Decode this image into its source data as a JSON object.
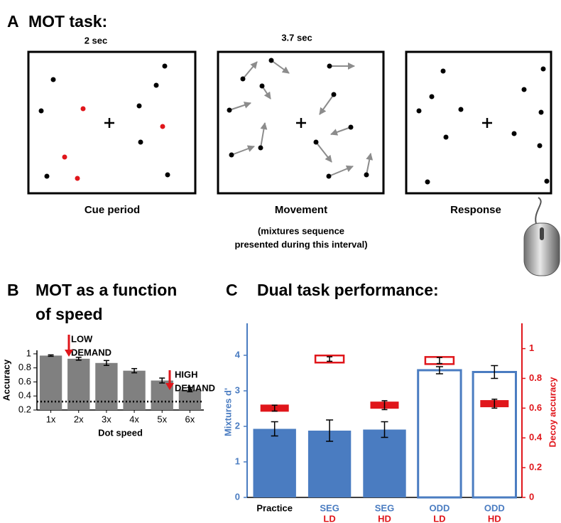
{
  "panel_a": {
    "label": "A",
    "title": "MOT task:",
    "phases": [
      {
        "duration": "2 sec",
        "name": "Cue period"
      },
      {
        "duration": "3.7 sec",
        "name": "Movement",
        "note": [
          "(mixtures sequence",
          "presented during this interval)"
        ]
      },
      {
        "name": "Response"
      }
    ]
  },
  "chart_data": [
    {
      "type": "bar",
      "panel_label": "B",
      "title": [
        "MOT as a function",
        "of speed"
      ],
      "x_label": "Dot speed",
      "y_label": "Accuracy",
      "categories": [
        "1x",
        "2x",
        "3x",
        "4x",
        "5x",
        "6x"
      ],
      "values": [
        0.975,
        0.93,
        0.87,
        0.76,
        0.62,
        0.49
      ],
      "errors": [
        0.01,
        0.02,
        0.035,
        0.03,
        0.035,
        0.03
      ],
      "color": "#808080",
      "reference_line": 0.32,
      "annotations": [
        [
          "LOW",
          "DEMAND"
        ],
        [
          "HIGH",
          "DEMAND"
        ]
      ],
      "ylim": [
        0.2,
        1.05
      ],
      "yticks": [
        0.2,
        0.4,
        0.6,
        0.8,
        1
      ]
    },
    {
      "type": "dual_bar",
      "panel_label": "C",
      "title": "Dual task performance:",
      "y_label": "Mixtures d'",
      "y2_label": "Decoy accuracy",
      "categories": [
        "Practice",
        "SEG",
        "SEG",
        "ODD",
        "ODD"
      ],
      "category_sublabels": [
        null,
        "LD",
        "HD",
        "LD",
        "HD"
      ],
      "series": [
        {
          "name": "Mixtures d'",
          "color": "#4a7cc1",
          "values": [
            1.93,
            1.88,
            1.91,
            3.58,
            3.53
          ],
          "errors": [
            0.2,
            0.3,
            0.22,
            0.1,
            0.18
          ],
          "hollow": [
            false,
            false,
            false,
            true,
            true
          ]
        },
        {
          "name": "Decoy accuracy",
          "color": "#e0161b",
          "axis": "y2",
          "values": [
            0.6,
            0.93,
            0.62,
            0.92,
            0.63
          ],
          "errors": [
            0.02,
            0.015,
            0.03,
            0.02,
            0.03
          ],
          "hollow": [
            false,
            true,
            false,
            true,
            false
          ]
        }
      ],
      "ylim": [
        0,
        4.9
      ],
      "yticks": [
        0,
        1,
        2,
        3,
        4
      ],
      "y2lim": [
        0,
        1.17
      ],
      "y2ticks": [
        0,
        0.2,
        0.4,
        0.6,
        0.8,
        1
      ]
    }
  ]
}
